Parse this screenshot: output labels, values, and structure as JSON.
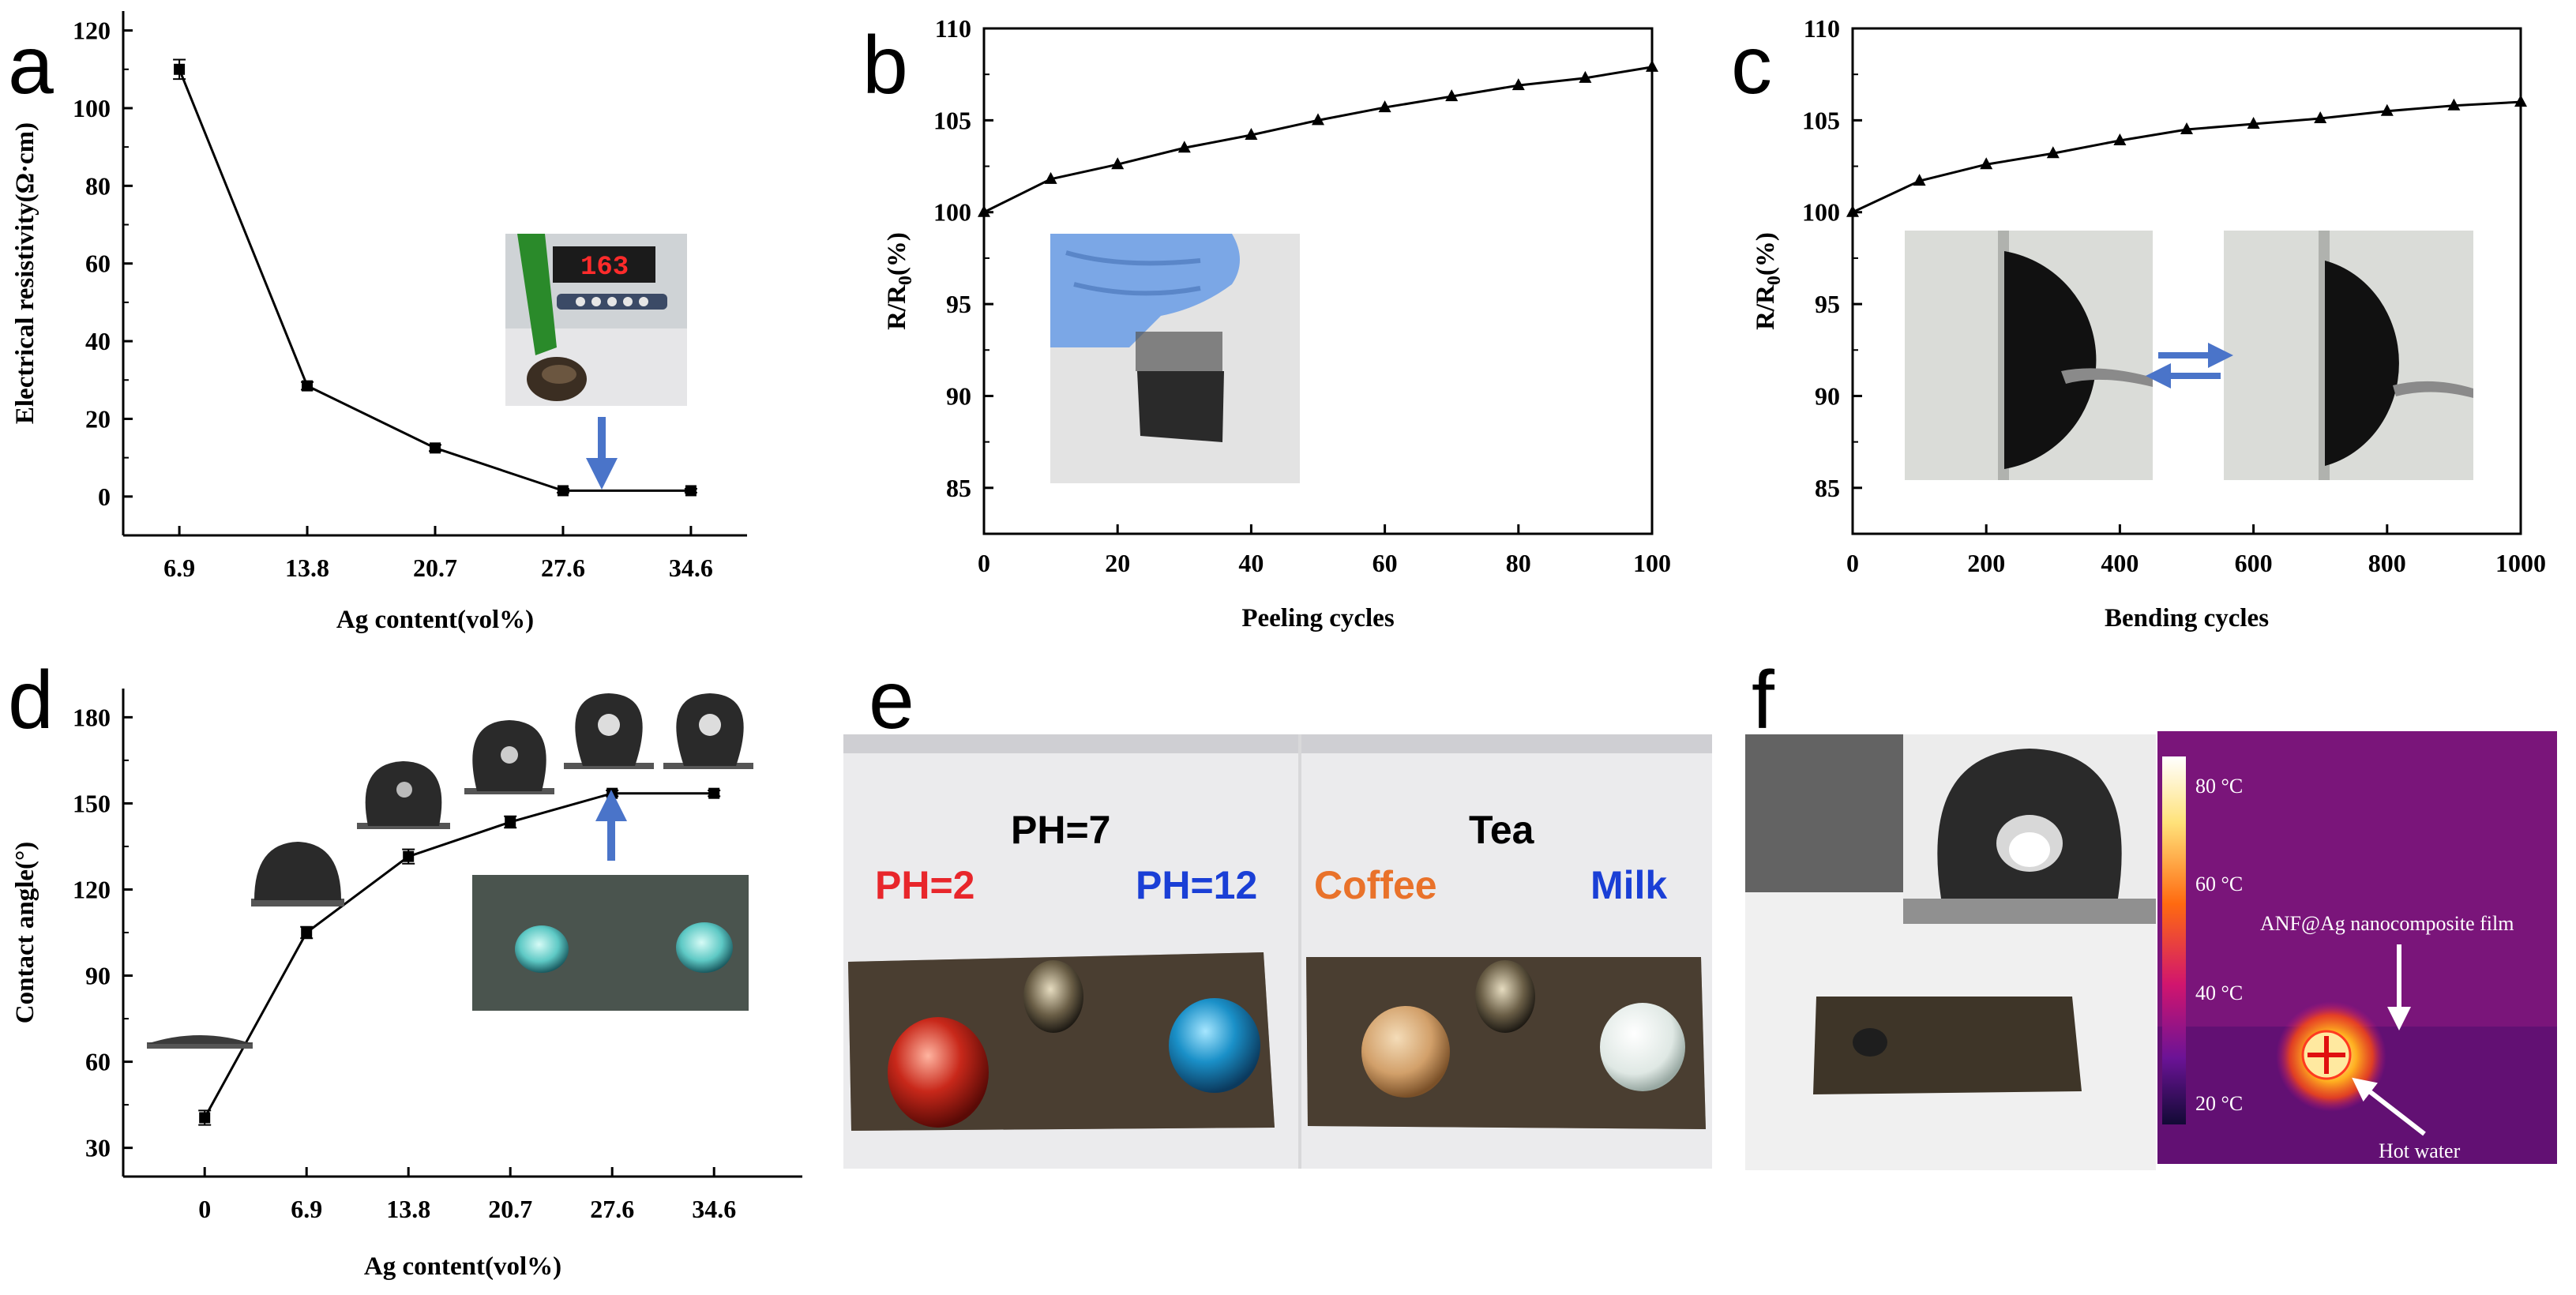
{
  "chart_data": [
    {
      "panel": "a",
      "type": "line",
      "xlabel": "Ag content(vol%)",
      "ylabel": "Electrical resistivity(Ω·cm)",
      "categories": [
        "6.9",
        "13.8",
        "20.7",
        "27.6",
        "34.6"
      ],
      "values": [
        110,
        28.5,
        12.5,
        1.5,
        1.5
      ],
      "yerr": [
        2.5,
        1,
        0.8,
        0.5,
        0.5
      ],
      "ylim": [
        -10,
        125
      ],
      "yticks": [
        0,
        20,
        40,
        60,
        80,
        100,
        120
      ],
      "marker": "square",
      "inset_display": "163"
    },
    {
      "panel": "b",
      "type": "line",
      "xlabel": "Peeling cycles",
      "ylabel": "R/R0(%)",
      "x": [
        0,
        10,
        20,
        30,
        40,
        50,
        60,
        70,
        80,
        90,
        100
      ],
      "values": [
        100,
        101.8,
        102.6,
        103.5,
        104.2,
        105,
        105.7,
        106.3,
        106.9,
        107.3,
        107.9
      ],
      "xlim": [
        0,
        100
      ],
      "ylim": [
        82.5,
        110
      ],
      "xticks": [
        0,
        20,
        40,
        60,
        80,
        100
      ],
      "yticks": [
        85,
        90,
        95,
        100,
        105,
        110
      ],
      "marker": "triangle"
    },
    {
      "panel": "c",
      "type": "line",
      "xlabel": "Bending cycles",
      "ylabel": "R/R0(%)",
      "x": [
        0,
        100,
        200,
        300,
        400,
        500,
        600,
        700,
        800,
        900,
        1000
      ],
      "values": [
        100,
        101.7,
        102.6,
        103.2,
        103.9,
        104.5,
        104.8,
        105.1,
        105.5,
        105.8,
        106
      ],
      "xlim": [
        0,
        1000
      ],
      "ylim": [
        82.5,
        110
      ],
      "xticks": [
        0,
        200,
        400,
        600,
        800,
        1000
      ],
      "yticks": [
        85,
        90,
        95,
        100,
        105,
        110
      ],
      "marker": "triangle"
    },
    {
      "panel": "d",
      "type": "line",
      "xlabel": "Ag content(vol%)",
      "ylabel": "Contact angle(°)",
      "categories": [
        "0",
        "6.9",
        "13.8",
        "20.7",
        "27.6",
        "34.6"
      ],
      "values": [
        40.5,
        105,
        131.5,
        143.5,
        153.5,
        153.5
      ],
      "yerr": [
        2.5,
        2,
        2.5,
        2,
        1,
        1
      ],
      "ylim": [
        20,
        190
      ],
      "yticks": [
        30,
        60,
        90,
        120,
        150,
        180
      ],
      "marker": "square"
    }
  ],
  "panels": {
    "a": "a",
    "b": "b",
    "c": "c",
    "d": "d",
    "e": "e",
    "f": "f"
  },
  "ylabel_rr0": {
    "main": "R/R",
    "sub": "0",
    "tail": "(%)"
  },
  "panel_e": {
    "labels": {
      "ph7": "PH=7",
      "ph2": "PH=2",
      "ph12": "PH=12",
      "tea": "Tea",
      "coffee": "Coffee",
      "milk": "Milk"
    },
    "colors": {
      "ph7": "#000000",
      "ph2": "#e8262b",
      "ph12": "#1a3fd6",
      "tea": "#000000",
      "coffee": "#e9722a",
      "milk": "#1a3fd6"
    }
  },
  "panel_f": {
    "colorbar_labels": [
      "80 °C",
      "60 °C",
      "40 °C",
      "20 °C"
    ],
    "film_label": "ANF@Ag nanocomposite film",
    "hot_label": "Hot water"
  }
}
